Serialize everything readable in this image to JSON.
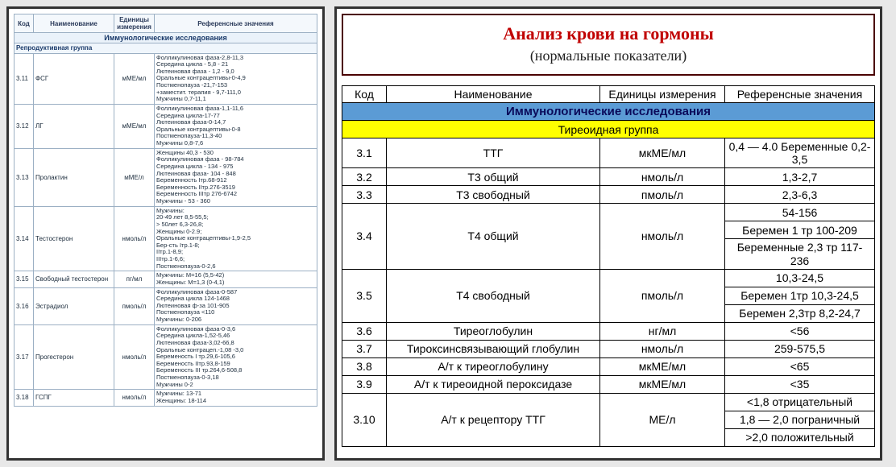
{
  "left": {
    "headers": {
      "c1": "Код",
      "c2": "Наименование",
      "c3": "Единицы измерения",
      "c4": "Референсные значения"
    },
    "section": "Иммунологические исследования",
    "group": "Репродуктивная группа",
    "rows": [
      {
        "code": "3.11",
        "name": "ФСГ",
        "unit": "мМЕ/мл",
        "ref": "Фолликулиновая фаза-2,8-11,3\nСередина цикла - 5,8 - 21\nЛютеиновая фаза - 1,2 - 9,0\nОральные контрацептивы-0-4,9\nПостменопауза -21,7-153\n+заместит. терапия - 9,7-111,0\nМужчины 0,7-11,1"
      },
      {
        "code": "3.12",
        "name": "ЛГ",
        "unit": "мМЕ/мл",
        "ref": "Фолликулиновая фаза-1,1-11,6\nСередина цикла-17-77\nЛютеиновая фаза-0-14,7\nОральные контрацептивы-0-8\nПостменопауза-11,3-40\nМужчины 0,8-7,6"
      },
      {
        "code": "3.13",
        "name": "Пролактин",
        "unit": "мМЕ/л",
        "ref": "Женщины  40,3 - 530\nФолликулиновая фаза - 98-784\nСередина цикла - 134 - 975\nЛютеиновая фаза- 104 - 848\nБеременность Iтр.68-912\nБеременность IIтр.276-3519\nБеременность IIIтр 276-6742\nМужчины - 53 - 360"
      },
      {
        "code": "3.14",
        "name": "Тестостерон",
        "unit": "нмоль/л",
        "ref": "Мужчины:\n20-49 лет 8,5-55,5;\n> 50лет 6,3-26,8;\nЖенщины 0-2.9;\nОральные контрацептивы-1,9-2,5\nБер-сть Iтр.1-8;\nIIтр.1-8,9;\nIIIтр.1-6,6;\nПостменопауза-0-2,6"
      },
      {
        "code": "3.15",
        "name": "Свободный тестостерон",
        "unit": "пг/мл",
        "ref": "Мужчины: М=16 (5,5-42)\nЖенщины: М=1,3 (0-4,1)"
      },
      {
        "code": "3.16",
        "name": "Эстрадиол",
        "unit": "пмоль/л",
        "ref": "Фолликулиновая фаза-0-587\nСередина цикла 124-1468\nЛютеиновая ф-за 101-905\nПостменопауза <110\nМужчины: 0-206"
      },
      {
        "code": "3.17",
        "name": "Прогестерон",
        "unit": "нмоль/л",
        "ref": "Фолликулиновая фаза-0-3,6\nСередина цикла-1,52-5,46\nЛютеиновая фаза-3,02-66,8\nОральные контрацеп.-1,08 -3,0\nБеременость I тр.29,6-105,6\nБеременость IIтр.93,8-159\nБеременость III тр.264,6-508,8\nПостменопауза-0-3,18\nМужчины 0-2"
      },
      {
        "code": "3.18",
        "name": "ГСПГ",
        "unit": "нмоль/л",
        "ref": "Мужчины: 13-71\nЖенщины: 18-114"
      }
    ]
  },
  "right": {
    "title_main": "Анализ крови на гормоны",
    "title_sub": "(нормальные показатели)",
    "headers": {
      "c1": "Код",
      "c2": "Наименование",
      "c3": "Единицы измерения",
      "c4": "Референсные значения"
    },
    "section_blue": "Иммунологические исследования",
    "section_yellow": "Тиреоидная группа",
    "rows": [
      {
        "code": "3.1",
        "name": "ТТГ",
        "unit": "мкМЕ/мл",
        "refs": [
          "0,4 — 4.0 Беременные 0,2-3,5"
        ]
      },
      {
        "code": "3.2",
        "name": "Т3 общий",
        "unit": "нмоль/л",
        "refs": [
          "1,3-2,7"
        ]
      },
      {
        "code": "3.3",
        "name": "Т3 свободный",
        "unit": "пмоль/л",
        "refs": [
          "2,3-6,3"
        ]
      },
      {
        "code": "3.4",
        "name": "Т4 общий",
        "unit": "нмоль/л",
        "refs": [
          "54-156",
          "Беремен 1 тр 100-209",
          "Беременные 2,3 тр 117-236"
        ]
      },
      {
        "code": "3.5",
        "name": "Т4 свободный",
        "unit": "пмоль/л",
        "refs": [
          "10,3-24,5",
          "Беремен 1тр 10,3-24,5",
          "Беремен 2,3тр 8,2-24,7"
        ]
      },
      {
        "code": "3.6",
        "name": "Тиреоглобулин",
        "unit": "нг/мл",
        "refs": [
          "<56"
        ]
      },
      {
        "code": "3.7",
        "name": "Тироксинсвязывающий глобулин",
        "unit": "нмоль/л",
        "refs": [
          "259-575,5"
        ]
      },
      {
        "code": "3.8",
        "name": "А/т к тиреоглобулину",
        "unit": "мкМЕ/мл",
        "refs": [
          "<65"
        ]
      },
      {
        "code": "3.9",
        "name": "А/т к тиреоидной пероксидазе",
        "unit": "мкМЕ/мл",
        "refs": [
          "<35"
        ]
      },
      {
        "code": "3.10",
        "name": "А/т к рецептору ТТГ",
        "unit": "МЕ/л",
        "refs": [
          "<1,8 отрицательный",
          "1,8 — 2,0 пограничный",
          ">2,0 положительный"
        ]
      }
    ]
  },
  "colors": {
    "panel_border": "#333333",
    "left_border": "#9cb0c4",
    "right_border": "#000000",
    "title_red": "#c00000",
    "blue_band": "#5b9bd5",
    "yellow_band": "#ffff00",
    "background": "#e8e8e8"
  }
}
